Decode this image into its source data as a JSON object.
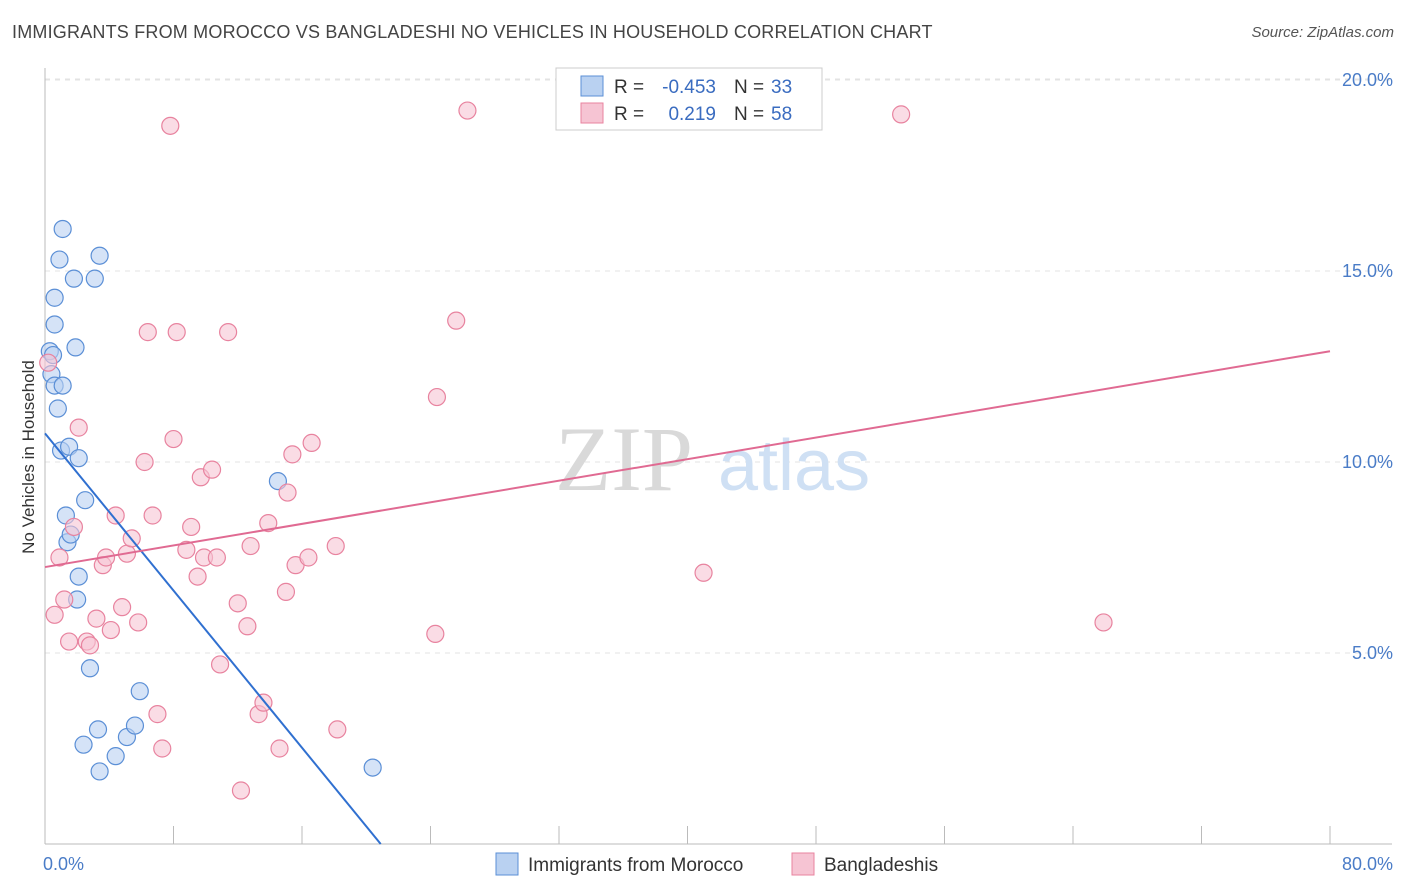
{
  "header": {
    "title": "IMMIGRANTS FROM MOROCCO VS BANGLADESHI NO VEHICLES IN HOUSEHOLD CORRELATION CHART",
    "source": "Source: ZipAtlas.com"
  },
  "watermark": {
    "zip": "ZIP",
    "atlas": "atlas"
  },
  "colors": {
    "blue": "#5b8fd6",
    "blue_fill": "#b9d1f1",
    "blue_line": "#3070d0",
    "pink": "#e8839f",
    "pink_fill": "#f6c4d3",
    "pink_line": "#e06a92",
    "tick_text": "#4a7cc7",
    "grid": "#e3e3e3"
  },
  "stats_box": {
    "rows": [
      {
        "r_label": "R =",
        "r_value": "-0.453",
        "n_label": "N =",
        "n_value": "33"
      },
      {
        "r_label": "R =",
        "r_value": "0.219",
        "n_label": "N =",
        "n_value": "58"
      }
    ]
  },
  "chart_data": {
    "type": "scatter",
    "title": "IMMIGRANTS FROM MOROCCO VS BANGLADESHI NO VEHICLES IN HOUSEHOLD CORRELATION CHART",
    "xlabel": "",
    "ylabel": "No Vehicles in Household",
    "xlim": [
      0,
      80
    ],
    "ylim": [
      0,
      20.5
    ],
    "x_tick_labels": {
      "left": "0.0%",
      "right": "80.0%"
    },
    "y_ticks": [
      {
        "value": 5,
        "label": "5.0%"
      },
      {
        "value": 10,
        "label": "10.0%"
      },
      {
        "value": 15,
        "label": "15.0%"
      },
      {
        "value": 20,
        "label": "20.0%"
      }
    ],
    "legend": [
      "Immigrants from Morocco",
      "Bangladeshis"
    ],
    "series": [
      {
        "name": "Immigrants from Morocco",
        "color": "#5b8fd6",
        "r": -0.453,
        "n": 33,
        "trend": {
          "x": [
            0,
            20.9
          ],
          "y": [
            10.75,
            0.0
          ]
        },
        "points": [
          [
            0.3,
            12.9
          ],
          [
            0.5,
            12.8
          ],
          [
            0.4,
            12.3
          ],
          [
            0.6,
            12.0
          ],
          [
            1.1,
            12.0
          ],
          [
            0.6,
            13.6
          ],
          [
            0.6,
            14.3
          ],
          [
            0.9,
            15.3
          ],
          [
            1.1,
            16.1
          ],
          [
            1.8,
            14.8
          ],
          [
            3.1,
            14.8
          ],
          [
            3.4,
            15.4
          ],
          [
            1.9,
            13.0
          ],
          [
            0.8,
            11.4
          ],
          [
            1.0,
            10.3
          ],
          [
            1.5,
            10.4
          ],
          [
            2.1,
            10.1
          ],
          [
            2.5,
            9.0
          ],
          [
            1.3,
            8.6
          ],
          [
            1.4,
            7.9
          ],
          [
            1.6,
            8.1
          ],
          [
            2.1,
            7.0
          ],
          [
            2.0,
            6.4
          ],
          [
            2.8,
            4.6
          ],
          [
            3.3,
            3.0
          ],
          [
            2.4,
            2.6
          ],
          [
            3.4,
            1.9
          ],
          [
            4.4,
            2.3
          ],
          [
            5.1,
            2.8
          ],
          [
            5.6,
            3.1
          ],
          [
            5.9,
            4.0
          ],
          [
            14.5,
            9.5
          ],
          [
            20.4,
            2.0
          ]
        ]
      },
      {
        "name": "Bangladeshis",
        "color": "#e8839f",
        "r": 0.219,
        "n": 58,
        "trend": {
          "x": [
            0,
            80
          ],
          "y": [
            7.25,
            12.9
          ]
        },
        "points": [
          [
            0.2,
            12.6
          ],
          [
            0.6,
            6.0
          ],
          [
            0.9,
            7.5
          ],
          [
            1.2,
            6.4
          ],
          [
            1.5,
            5.3
          ],
          [
            1.8,
            8.3
          ],
          [
            2.1,
            10.9
          ],
          [
            2.6,
            5.3
          ],
          [
            2.8,
            5.2
          ],
          [
            3.2,
            5.9
          ],
          [
            3.6,
            7.3
          ],
          [
            3.8,
            7.5
          ],
          [
            4.1,
            5.6
          ],
          [
            4.4,
            8.6
          ],
          [
            4.8,
            6.2
          ],
          [
            5.1,
            7.6
          ],
          [
            5.4,
            8.0
          ],
          [
            5.8,
            5.8
          ],
          [
            6.2,
            10.0
          ],
          [
            6.4,
            13.4
          ],
          [
            6.7,
            8.6
          ],
          [
            7.0,
            3.4
          ],
          [
            7.3,
            2.5
          ],
          [
            7.8,
            18.8
          ],
          [
            8.0,
            10.6
          ],
          [
            8.2,
            13.4
          ],
          [
            8.8,
            7.7
          ],
          [
            9.1,
            8.3
          ],
          [
            9.5,
            7.0
          ],
          [
            9.7,
            9.6
          ],
          [
            9.9,
            7.5
          ],
          [
            10.4,
            9.8
          ],
          [
            10.7,
            7.5
          ],
          [
            10.9,
            4.7
          ],
          [
            11.4,
            13.4
          ],
          [
            12.0,
            6.3
          ],
          [
            12.2,
            1.4
          ],
          [
            12.6,
            5.7
          ],
          [
            12.8,
            7.8
          ],
          [
            13.3,
            3.4
          ],
          [
            13.6,
            3.7
          ],
          [
            13.9,
            8.4
          ],
          [
            14.6,
            2.5
          ],
          [
            15.0,
            6.6
          ],
          [
            15.1,
            9.2
          ],
          [
            15.4,
            10.2
          ],
          [
            15.6,
            7.3
          ],
          [
            16.4,
            7.5
          ],
          [
            16.6,
            10.5
          ],
          [
            18.1,
            7.8
          ],
          [
            18.2,
            3.0
          ],
          [
            24.3,
            5.5
          ],
          [
            24.4,
            11.7
          ],
          [
            25.6,
            13.7
          ],
          [
            26.3,
            19.2
          ],
          [
            41.0,
            7.1
          ],
          [
            53.3,
            19.1
          ],
          [
            65.9,
            5.8
          ]
        ]
      }
    ]
  }
}
